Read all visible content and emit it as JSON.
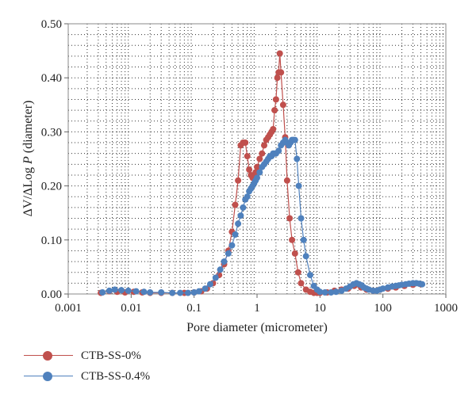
{
  "chart_data": {
    "type": "scatter",
    "xscale": "log",
    "xlim": [
      0.001,
      1000
    ],
    "ylim": [
      0,
      0.5
    ],
    "xlabel": "Pore diameter (micrometer)",
    "ylabel_parts": [
      "ΔV/ΔLog ",
      "P",
      " (diameter)"
    ],
    "x_tick_values": [
      0.001,
      0.01,
      0.1,
      1,
      10,
      100,
      1000
    ],
    "x_tick_labels": [
      "0.001",
      "0.01",
      "0.1",
      "1",
      "10",
      "100",
      "1000"
    ],
    "y_tick_values": [
      0,
      0.1,
      0.2,
      0.3,
      0.4,
      0.5
    ],
    "y_tick_labels": [
      "0.00",
      "0.10",
      "0.20",
      "0.30",
      "0.40",
      "0.50"
    ],
    "grid": true,
    "legend_position": "bottom-left",
    "series": [
      {
        "name": "CTB-SS-0%",
        "color": "#c0504d",
        "x": [
          0.0033,
          0.0045,
          0.006,
          0.008,
          0.011,
          0.015,
          0.02,
          0.03,
          0.045,
          0.07,
          0.1,
          0.13,
          0.16,
          0.2,
          0.25,
          0.3,
          0.35,
          0.4,
          0.45,
          0.5,
          0.55,
          0.6,
          0.65,
          0.7,
          0.75,
          0.8,
          0.85,
          0.9,
          0.95,
          1.0,
          1.1,
          1.2,
          1.3,
          1.4,
          1.5,
          1.6,
          1.7,
          1.8,
          1.9,
          2.0,
          2.1,
          2.2,
          2.3,
          2.4,
          2.6,
          2.8,
          3.0,
          3.3,
          3.6,
          4.0,
          4.5,
          5.0,
          6.0,
          7.0,
          8.0,
          9.0,
          10,
          13,
          17,
          22,
          28,
          35,
          45,
          55,
          70,
          90,
          120,
          160,
          220,
          300,
          400
        ],
        "y": [
          0.002,
          0.005,
          0.004,
          0.003,
          0.004,
          0.003,
          0.002,
          0.002,
          0.002,
          0.002,
          0.003,
          0.005,
          0.01,
          0.02,
          0.035,
          0.055,
          0.08,
          0.115,
          0.165,
          0.21,
          0.275,
          0.28,
          0.28,
          0.255,
          0.23,
          0.22,
          0.215,
          0.22,
          0.225,
          0.235,
          0.25,
          0.26,
          0.275,
          0.285,
          0.29,
          0.295,
          0.3,
          0.305,
          0.34,
          0.36,
          0.4,
          0.41,
          0.445,
          0.41,
          0.35,
          0.29,
          0.21,
          0.14,
          0.1,
          0.075,
          0.04,
          0.02,
          0.008,
          0.004,
          0.002,
          0.002,
          0.002,
          0.003,
          0.006,
          0.008,
          0.01,
          0.015,
          0.012,
          0.008,
          0.006,
          0.008,
          0.01,
          0.012,
          0.015,
          0.017,
          0.018
        ]
      },
      {
        "name": "CTB-SS-0.4%",
        "color": "#4f81bd",
        "x": [
          0.0035,
          0.0045,
          0.0055,
          0.007,
          0.009,
          0.012,
          0.016,
          0.02,
          0.03,
          0.045,
          0.06,
          0.08,
          0.1,
          0.12,
          0.15,
          0.18,
          0.22,
          0.26,
          0.3,
          0.35,
          0.4,
          0.45,
          0.5,
          0.55,
          0.6,
          0.65,
          0.7,
          0.75,
          0.8,
          0.85,
          0.9,
          0.95,
          1.0,
          1.1,
          1.2,
          1.3,
          1.4,
          1.5,
          1.6,
          1.7,
          1.8,
          1.9,
          2.0,
          2.2,
          2.4,
          2.6,
          2.8,
          3.0,
          3.2,
          3.4,
          3.6,
          3.8,
          4.0,
          4.3,
          4.6,
          5.0,
          5.5,
          6.0,
          7.0,
          8.0,
          9.0,
          10,
          12,
          15,
          18,
          22,
          26,
          30,
          34,
          38,
          42,
          46,
          50,
          55,
          60,
          70,
          80,
          90,
          100,
          120,
          140,
          160,
          180,
          200,
          230,
          260,
          300,
          340,
          380,
          420
        ],
        "y": [
          0.003,
          0.006,
          0.008,
          0.007,
          0.006,
          0.005,
          0.004,
          0.003,
          0.003,
          0.002,
          0.002,
          0.002,
          0.003,
          0.005,
          0.01,
          0.018,
          0.03,
          0.045,
          0.06,
          0.075,
          0.09,
          0.11,
          0.13,
          0.145,
          0.16,
          0.175,
          0.18,
          0.19,
          0.195,
          0.2,
          0.205,
          0.21,
          0.215,
          0.225,
          0.235,
          0.24,
          0.245,
          0.25,
          0.255,
          0.255,
          0.26,
          0.26,
          0.26,
          0.265,
          0.275,
          0.28,
          0.285,
          0.28,
          0.275,
          0.28,
          0.285,
          0.285,
          0.285,
          0.25,
          0.2,
          0.14,
          0.1,
          0.07,
          0.035,
          0.015,
          0.008,
          0.004,
          0.003,
          0.003,
          0.004,
          0.006,
          0.01,
          0.014,
          0.018,
          0.02,
          0.018,
          0.016,
          0.012,
          0.01,
          0.008,
          0.006,
          0.006,
          0.008,
          0.01,
          0.012,
          0.014,
          0.015,
          0.016,
          0.017,
          0.018,
          0.019,
          0.02,
          0.02,
          0.019,
          0.018
        ]
      }
    ]
  }
}
